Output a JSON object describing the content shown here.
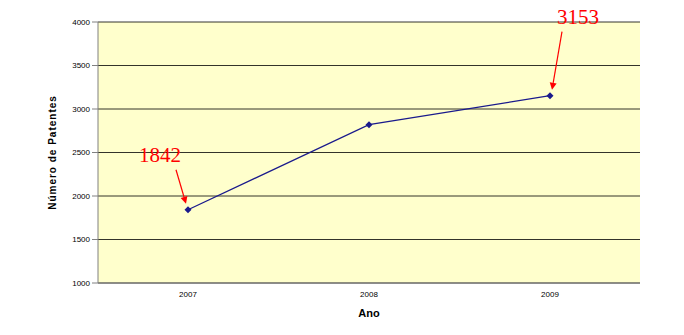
{
  "chart_data": {
    "type": "line",
    "x_label": "Ano",
    "y_label": "Número de Patentes",
    "categories": [
      "2007",
      "2008",
      "2009"
    ],
    "series": [
      {
        "name": "Número de Patentes",
        "color": "#1a1a8c",
        "values": [
          1842,
          2820,
          3153
        ],
        "marker": "diamond"
      }
    ],
    "ylim": [
      1000,
      4000
    ],
    "yticks": [
      1000,
      1500,
      2000,
      2500,
      3000,
      3500,
      4000
    ],
    "grid": true,
    "annotations": [
      {
        "x": "2007",
        "text": "1842"
      },
      {
        "x": "2009",
        "text": "3153"
      }
    ]
  }
}
